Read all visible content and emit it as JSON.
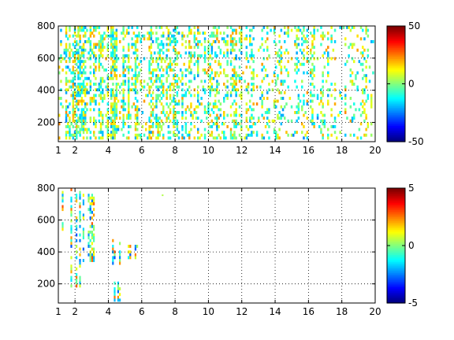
{
  "chart_data": [
    {
      "type": "heatmap",
      "title": "",
      "xlabel": "",
      "ylabel": "",
      "xlim": [
        1,
        20
      ],
      "ylim": [
        80,
        800
      ],
      "xticks": [
        1,
        2,
        4,
        6,
        8,
        10,
        12,
        14,
        16,
        18,
        20
      ],
      "yticks": [
        200,
        400,
        600,
        800
      ],
      "grid": "dotted",
      "colorbar": {
        "min": -50,
        "max": 50,
        "ticks": [
          -50,
          0,
          50
        ],
        "colormap": "jet"
      },
      "density": "dense",
      "value_scale": 22,
      "background": "#ffffff"
    },
    {
      "type": "heatmap",
      "title": "",
      "xlabel": "",
      "ylabel": "",
      "xlim": [
        1,
        20
      ],
      "ylim": [
        80,
        800
      ],
      "xticks": [
        1,
        2,
        4,
        6,
        8,
        10,
        12,
        14,
        16,
        18,
        20
      ],
      "yticks": [
        200,
        400,
        600,
        800
      ],
      "grid": "dotted",
      "colorbar": {
        "min": -5,
        "max": 5,
        "ticks": [
          -5,
          0,
          5
        ],
        "colormap": "jet"
      },
      "density": "sparse",
      "clusters": [
        {
          "x": [
            1.2,
            1.5
          ],
          "y": [
            560,
            800
          ]
        },
        {
          "x": [
            1.8,
            2.2
          ],
          "y": [
            200,
            800
          ]
        },
        {
          "x": [
            2.5,
            3.0
          ],
          "y": [
            360,
            760
          ]
        },
        {
          "x": [
            4.3,
            4.8
          ],
          "y": [
            330,
            470
          ]
        },
        {
          "x": [
            5.2,
            5.6
          ],
          "y": [
            360,
            440
          ]
        },
        {
          "x": [
            4.4,
            4.6
          ],
          "y": [
            80,
            200
          ]
        }
      ],
      "value_scale": 3,
      "background": "#ffffff"
    }
  ]
}
